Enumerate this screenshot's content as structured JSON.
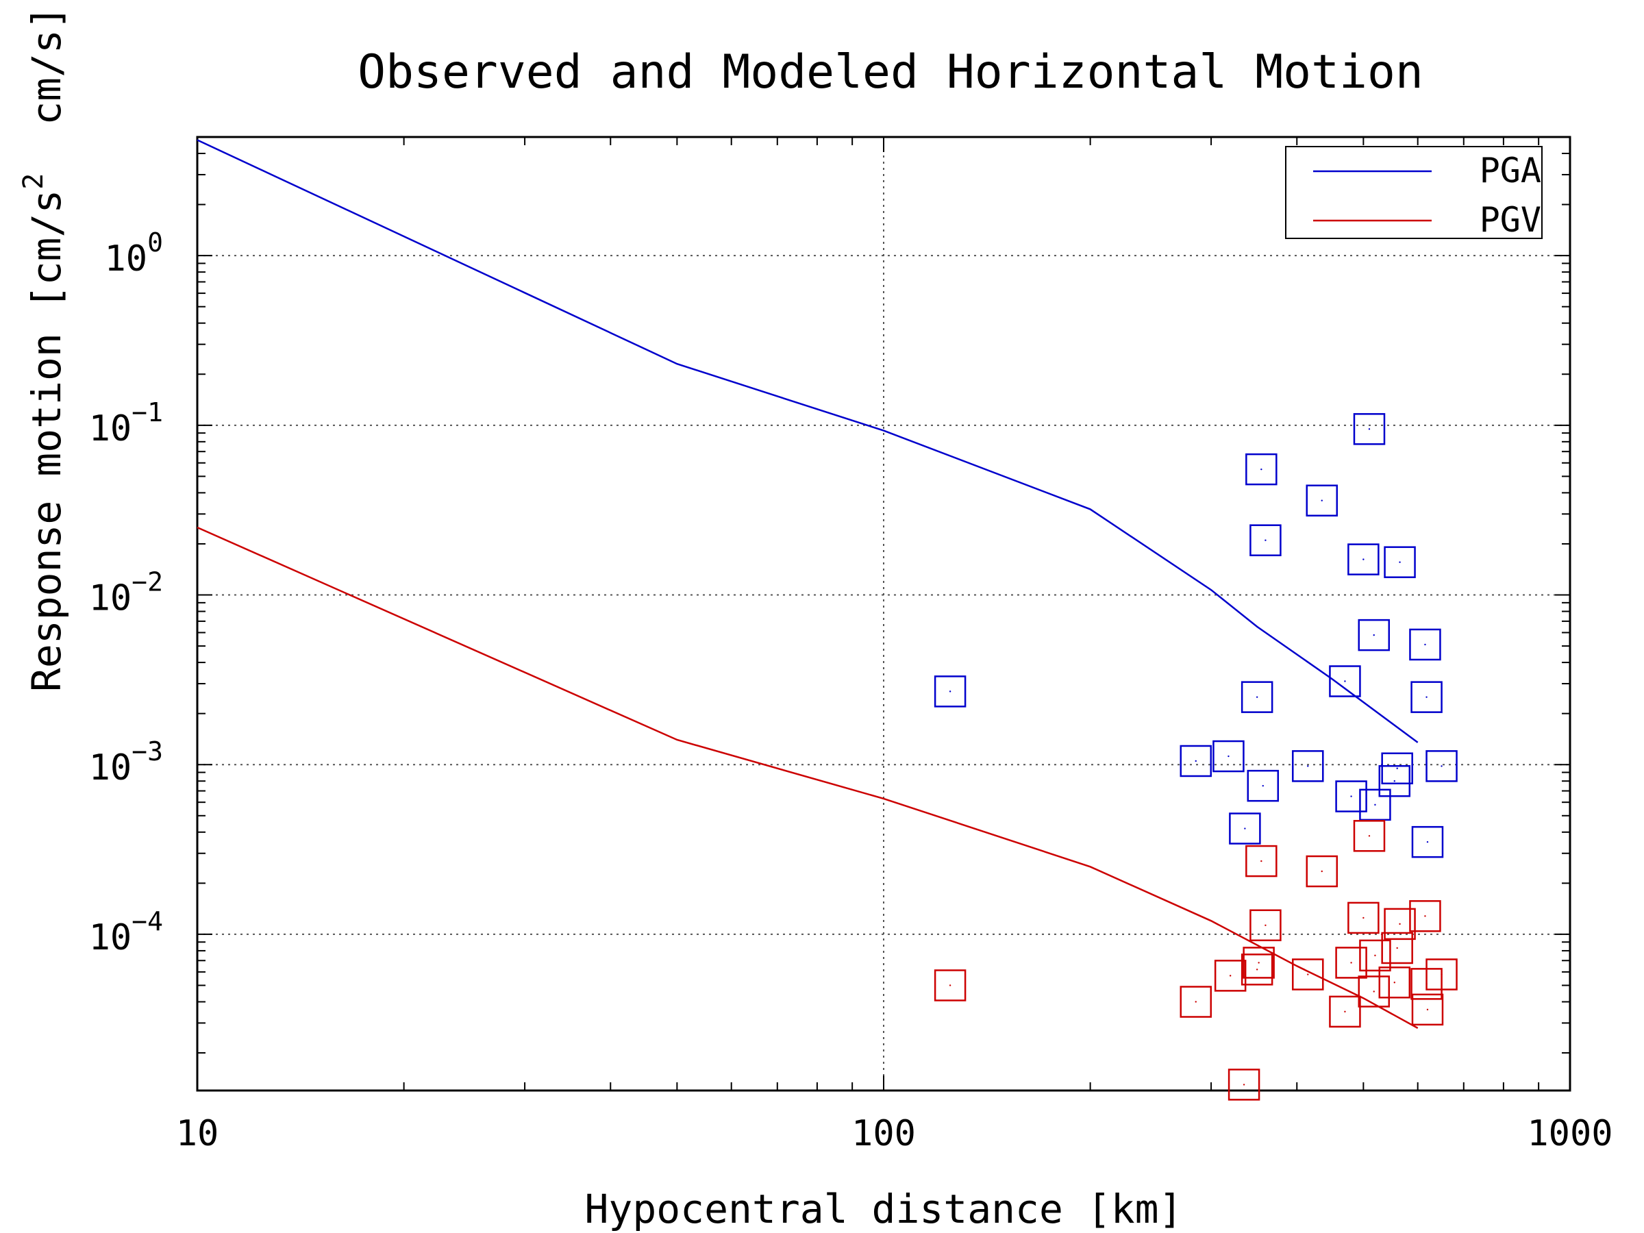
{
  "chart_data": {
    "type": "scatter",
    "title": "Observed and Modeled Horizontal Motion",
    "xlabel": "Hypocentral distance [km]",
    "ylabel": "Response motion [cm/s",
    "ylabel_sup": "2",
    "ylabel_tail": "  cm/s]",
    "xscale": "log",
    "yscale": "log",
    "xlim": [
      10,
      1000
    ],
    "ylim": [
      1.2e-05,
      5
    ],
    "x_ticks": [
      {
        "value": 10,
        "label": "10"
      },
      {
        "value": 100,
        "label": "100"
      },
      {
        "value": 1000,
        "label": "1000"
      }
    ],
    "y_ticks": [
      {
        "value": 1,
        "base": "10",
        "exp": "0"
      },
      {
        "value": 0.1,
        "base": "10",
        "exp": "−1"
      },
      {
        "value": 0.01,
        "base": "10",
        "exp": "−2"
      },
      {
        "value": 0.001,
        "base": "10",
        "exp": "−3"
      },
      {
        "value": 0.0001,
        "base": "10",
        "exp": "−4"
      }
    ],
    "grid": true,
    "legend_position": "top-right",
    "series": [
      {
        "name": "PGA",
        "color": "#0000cc",
        "line": [
          [
            10,
            4.8
          ],
          [
            50,
            0.23
          ],
          [
            100,
            0.093
          ],
          [
            200,
            0.032
          ],
          [
            300,
            0.0107
          ],
          [
            350,
            0.0065
          ],
          [
            450,
            0.0032
          ],
          [
            600,
            0.00135
          ]
        ],
        "points": [
          [
            125,
            0.0027
          ],
          [
            285,
            0.00105
          ],
          [
            318,
            0.00112
          ],
          [
            336,
            0.00042
          ],
          [
            350,
            0.0025
          ],
          [
            355,
            0.055
          ],
          [
            357,
            0.00075
          ],
          [
            360,
            0.021
          ],
          [
            415,
            0.00098
          ],
          [
            435,
            0.036
          ],
          [
            470,
            0.0031
          ],
          [
            480,
            0.00065
          ],
          [
            500,
            0.0162
          ],
          [
            510,
            0.095
          ],
          [
            520,
            0.00058
          ],
          [
            518,
            0.0058
          ],
          [
            555,
            0.0008
          ],
          [
            560,
            0.00095
          ],
          [
            565,
            0.0156
          ],
          [
            615,
            0.0051
          ],
          [
            618,
            0.0025
          ],
          [
            620,
            0.00035
          ],
          [
            650,
            0.00098
          ]
        ]
      },
      {
        "name": "PGV",
        "color": "#cc0000",
        "line": [
          [
            10,
            0.025
          ],
          [
            50,
            0.0014
          ],
          [
            100,
            0.00063
          ],
          [
            200,
            0.00025
          ],
          [
            300,
            0.00012
          ],
          [
            400,
            6.5e-05
          ],
          [
            500,
            4.2e-05
          ],
          [
            600,
            2.8e-05
          ]
        ],
        "points": [
          [
            125,
            5e-05
          ],
          [
            285,
            4e-05
          ],
          [
            320,
            5.7e-05
          ],
          [
            335,
            1.3e-05
          ],
          [
            350,
            6.2e-05
          ],
          [
            352,
            6.8e-05
          ],
          [
            355,
            0.00027
          ],
          [
            360,
            0.000113
          ],
          [
            415,
            5.8e-05
          ],
          [
            435,
            0.000235
          ],
          [
            470,
            3.5e-05
          ],
          [
            480,
            6.8e-05
          ],
          [
            500,
            0.000125
          ],
          [
            510,
            0.00038
          ],
          [
            518,
            4.6e-05
          ],
          [
            520,
            7.5e-05
          ],
          [
            555,
            5.2e-05
          ],
          [
            560,
            8.3e-05
          ],
          [
            565,
            0.000115
          ],
          [
            615,
            0.000128
          ],
          [
            618,
            5.1e-05
          ],
          [
            620,
            3.6e-05
          ],
          [
            650,
            5.8e-05
          ]
        ]
      }
    ]
  }
}
